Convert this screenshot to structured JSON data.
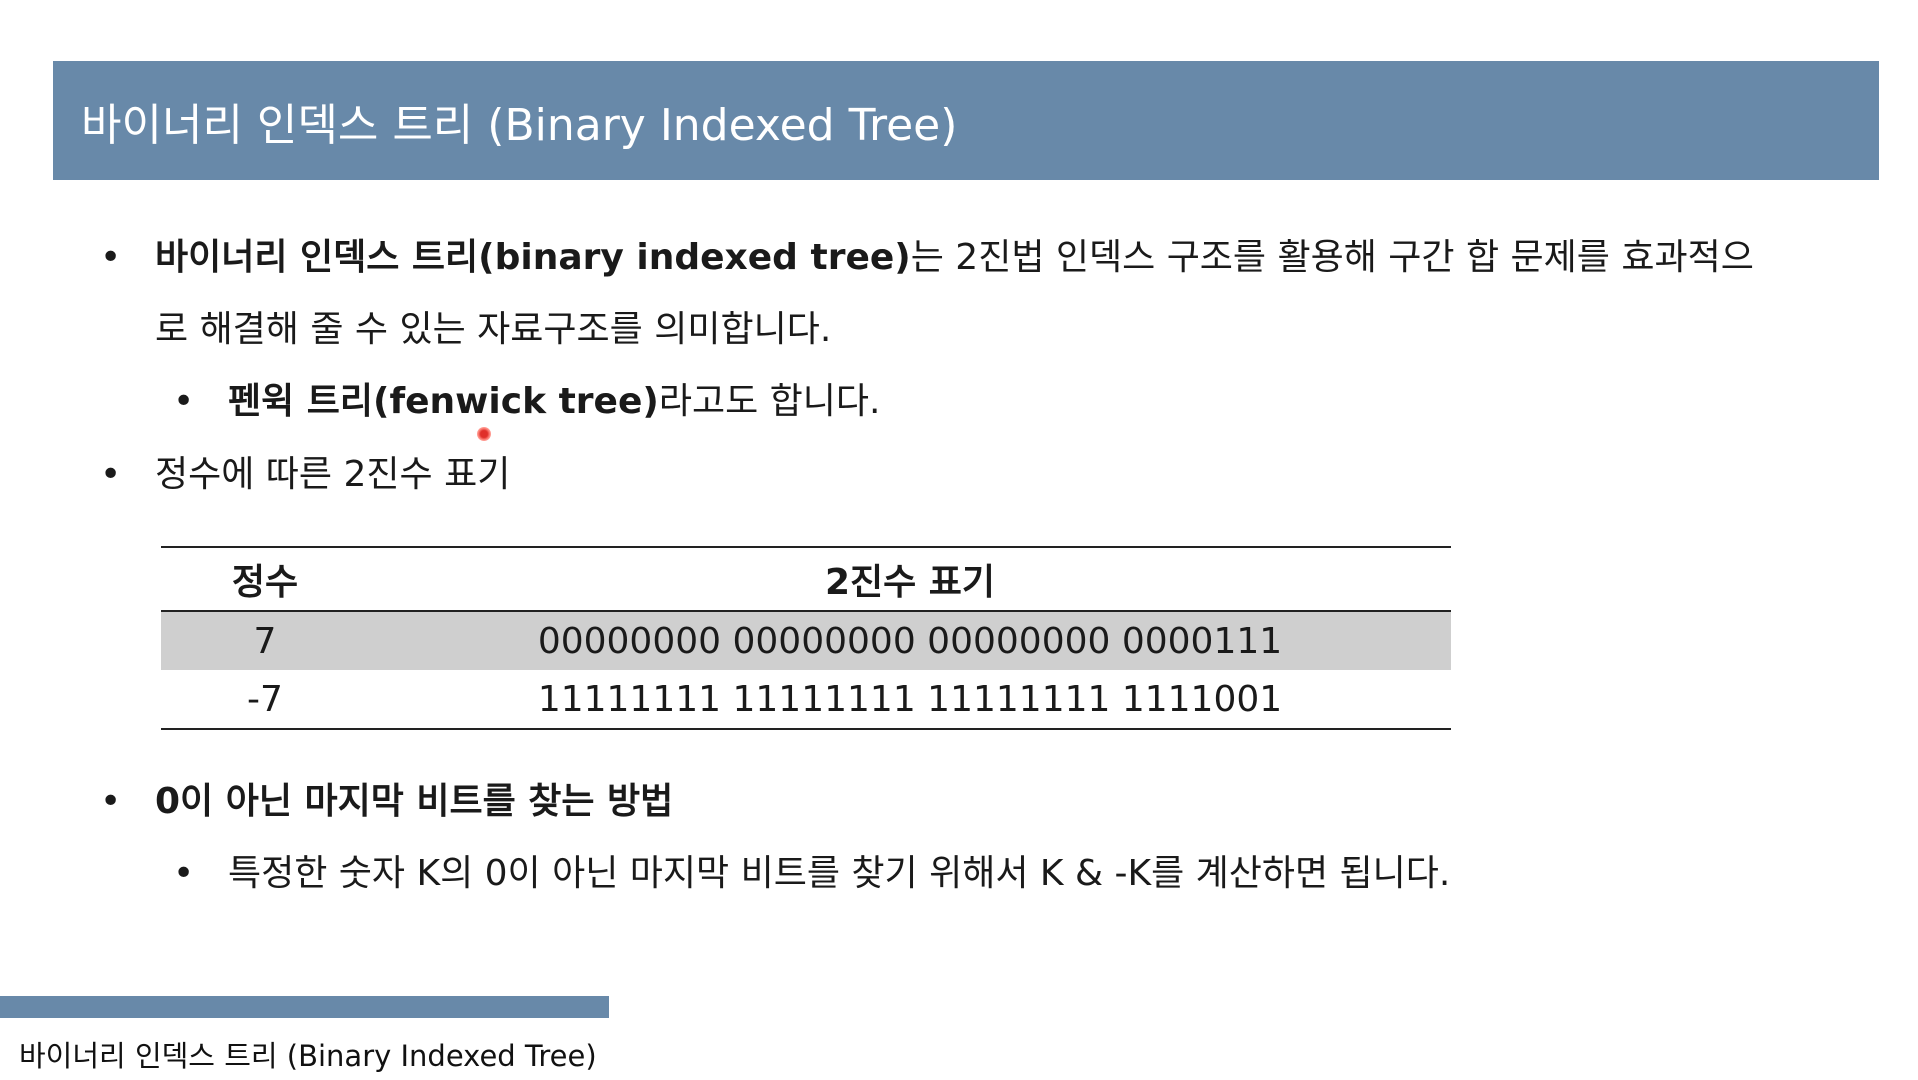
{
  "title": "바이너리 인덱스 트리 (Binary Indexed Tree)",
  "bullets": {
    "b1_bold": "바이너리 인덱스 트리(binary indexed tree)",
    "b1_rest": "는 2진법 인덱스 구조를 활용해 구간 합 문제를 효과적으",
    "b1_cont": "로 해결해 줄 수 있는 자료구조를 의미합니다.",
    "b1_sub_bold": "펜윅 트리(fenwick tree)",
    "b1_sub_rest": "라고도 합니다.",
    "b2": "정수에 따른 2진수 표기",
    "b3": "0이 아닌 마지막 비트를 찾는 방법",
    "b3_sub": "특정한 숫자 K의 0이 아닌 마지막 비트를 찾기 위해서 K & -K를 계산하면 됩니다."
  },
  "table": {
    "headers": [
      "정수",
      "2진수 표기"
    ],
    "rows": [
      [
        "7",
        "00000000 00000000 00000000 0000111"
      ],
      [
        "-7",
        "11111111 11111111 11111111 1111001"
      ]
    ]
  },
  "footer": {
    "label": "바이너리 인덱스 트리 (Binary Indexed Tree)"
  },
  "colors": {
    "title_bar": "#6889a9",
    "row_shade": "#cfcfcf",
    "pointer": "#e0302a"
  }
}
